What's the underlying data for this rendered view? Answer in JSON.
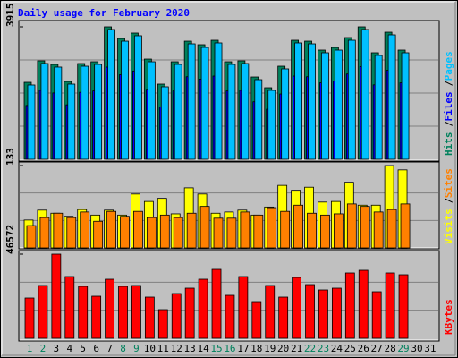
{
  "chart_data": {
    "type": "bar",
    "title": "Daily usage for February 2020",
    "categories": [
      "1",
      "2",
      "3",
      "4",
      "5",
      "6",
      "7",
      "8",
      "9",
      "10",
      "11",
      "12",
      "13",
      "14",
      "15",
      "16",
      "17",
      "18",
      "19",
      "20",
      "21",
      "22",
      "23",
      "24",
      "25",
      "26",
      "27",
      "28",
      "29",
      "30",
      "31"
    ],
    "category_colors": [
      "#00805c",
      "#00805c",
      "#000000",
      "#000000",
      "#000000",
      "#000000",
      "#000000",
      "#00805c",
      "#00805c",
      "#000000",
      "#000000",
      "#000000",
      "#000000",
      "#000000",
      "#00805c",
      "#00805c",
      "#000000",
      "#000000",
      "#000000",
      "#000000",
      "#000000",
      "#00805c",
      "#00805c",
      "#000000",
      "#000000",
      "#000000",
      "#000000",
      "#000000",
      "#00805c",
      "#000000",
      "#000000"
    ],
    "panels": [
      {
        "ylim": [
          0,
          3915
        ],
        "yticks": [
          3915
        ],
        "series": [
          {
            "name": "Hits",
            "color": "#00805c",
            "values": [
              2275,
              2910,
              2804,
              2301,
              2830,
              2883,
              3915,
              3571,
              3730,
              2962,
              2222,
              2883,
              3491,
              3386,
              3518,
              2883,
              2910,
              2433,
              2116,
              2751,
              3518,
              3491,
              3227,
              3306,
              3597,
              3915,
              3148,
              3756,
              3227,
              null,
              null
            ]
          },
          {
            "name": "Files",
            "color": "#0000ff",
            "values": [
              1590,
              2040,
              1960,
              1610,
              1980,
              2020,
              2725,
              2500,
              2610,
              2070,
              1550,
              2020,
              2440,
              2370,
              2460,
              2020,
              2040,
              1700,
              1480,
              1930,
              2460,
              2440,
              2260,
              2310,
              2520,
              2740,
              2200,
              2630,
              2260,
              null,
              null
            ]
          },
          {
            "name": "Pages",
            "color": "#00c0ff",
            "values": [
              2196,
              2831,
              2725,
              2222,
              2751,
              2804,
              3836,
              3491,
              3651,
              2883,
              2143,
              2804,
              3412,
              3306,
              3439,
              2804,
              2831,
              2354,
              2037,
              2672,
              3439,
              3412,
              3148,
              3227,
              3518,
              3836,
              3069,
              3677,
              3148,
              null,
              null
            ]
          }
        ]
      },
      {
        "ylim": [
          0,
          133
        ],
        "yticks": [
          133
        ],
        "series": [
          {
            "name": "Visits",
            "color": "#ffff00",
            "values": [
              45,
              61,
              56,
              51,
              62,
              53,
              61,
              53,
              87,
              75,
              80,
              55,
              97,
              87,
              56,
              58,
              61,
              53,
              66,
              101,
              93,
              98,
              74,
              75,
              106,
              69,
              69,
              133,
              126,
              null,
              null
            ]
          },
          {
            "name": "Sites",
            "color": "#ff8000",
            "values": [
              36,
              49,
              56,
              49,
              58,
              43,
              59,
              51,
              59,
              49,
              53,
              49,
              56,
              67,
              48,
              48,
              58,
              53,
              65,
              59,
              69,
              56,
              53,
              55,
              71,
              67,
              58,
              62,
              71,
              null,
              null
            ]
          }
        ]
      },
      {
        "ylim": [
          0,
          46572
        ],
        "yticks": [
          46572
        ],
        "series": [
          {
            "name": "KBytes",
            "color": "#ff0000",
            "values": [
              22293,
              29229,
              46572,
              34183,
              28733,
              23284,
              32696,
              28733,
              29229,
              22788,
              15853,
              24770,
              27742,
              32696,
              38146,
              23779,
              34183,
              20311,
              29229,
              22788,
              33687,
              29724,
              26752,
              27742,
              36164,
              37650,
              25761,
              36164,
              35174,
              null,
              null
            ]
          }
        ]
      }
    ]
  }
}
